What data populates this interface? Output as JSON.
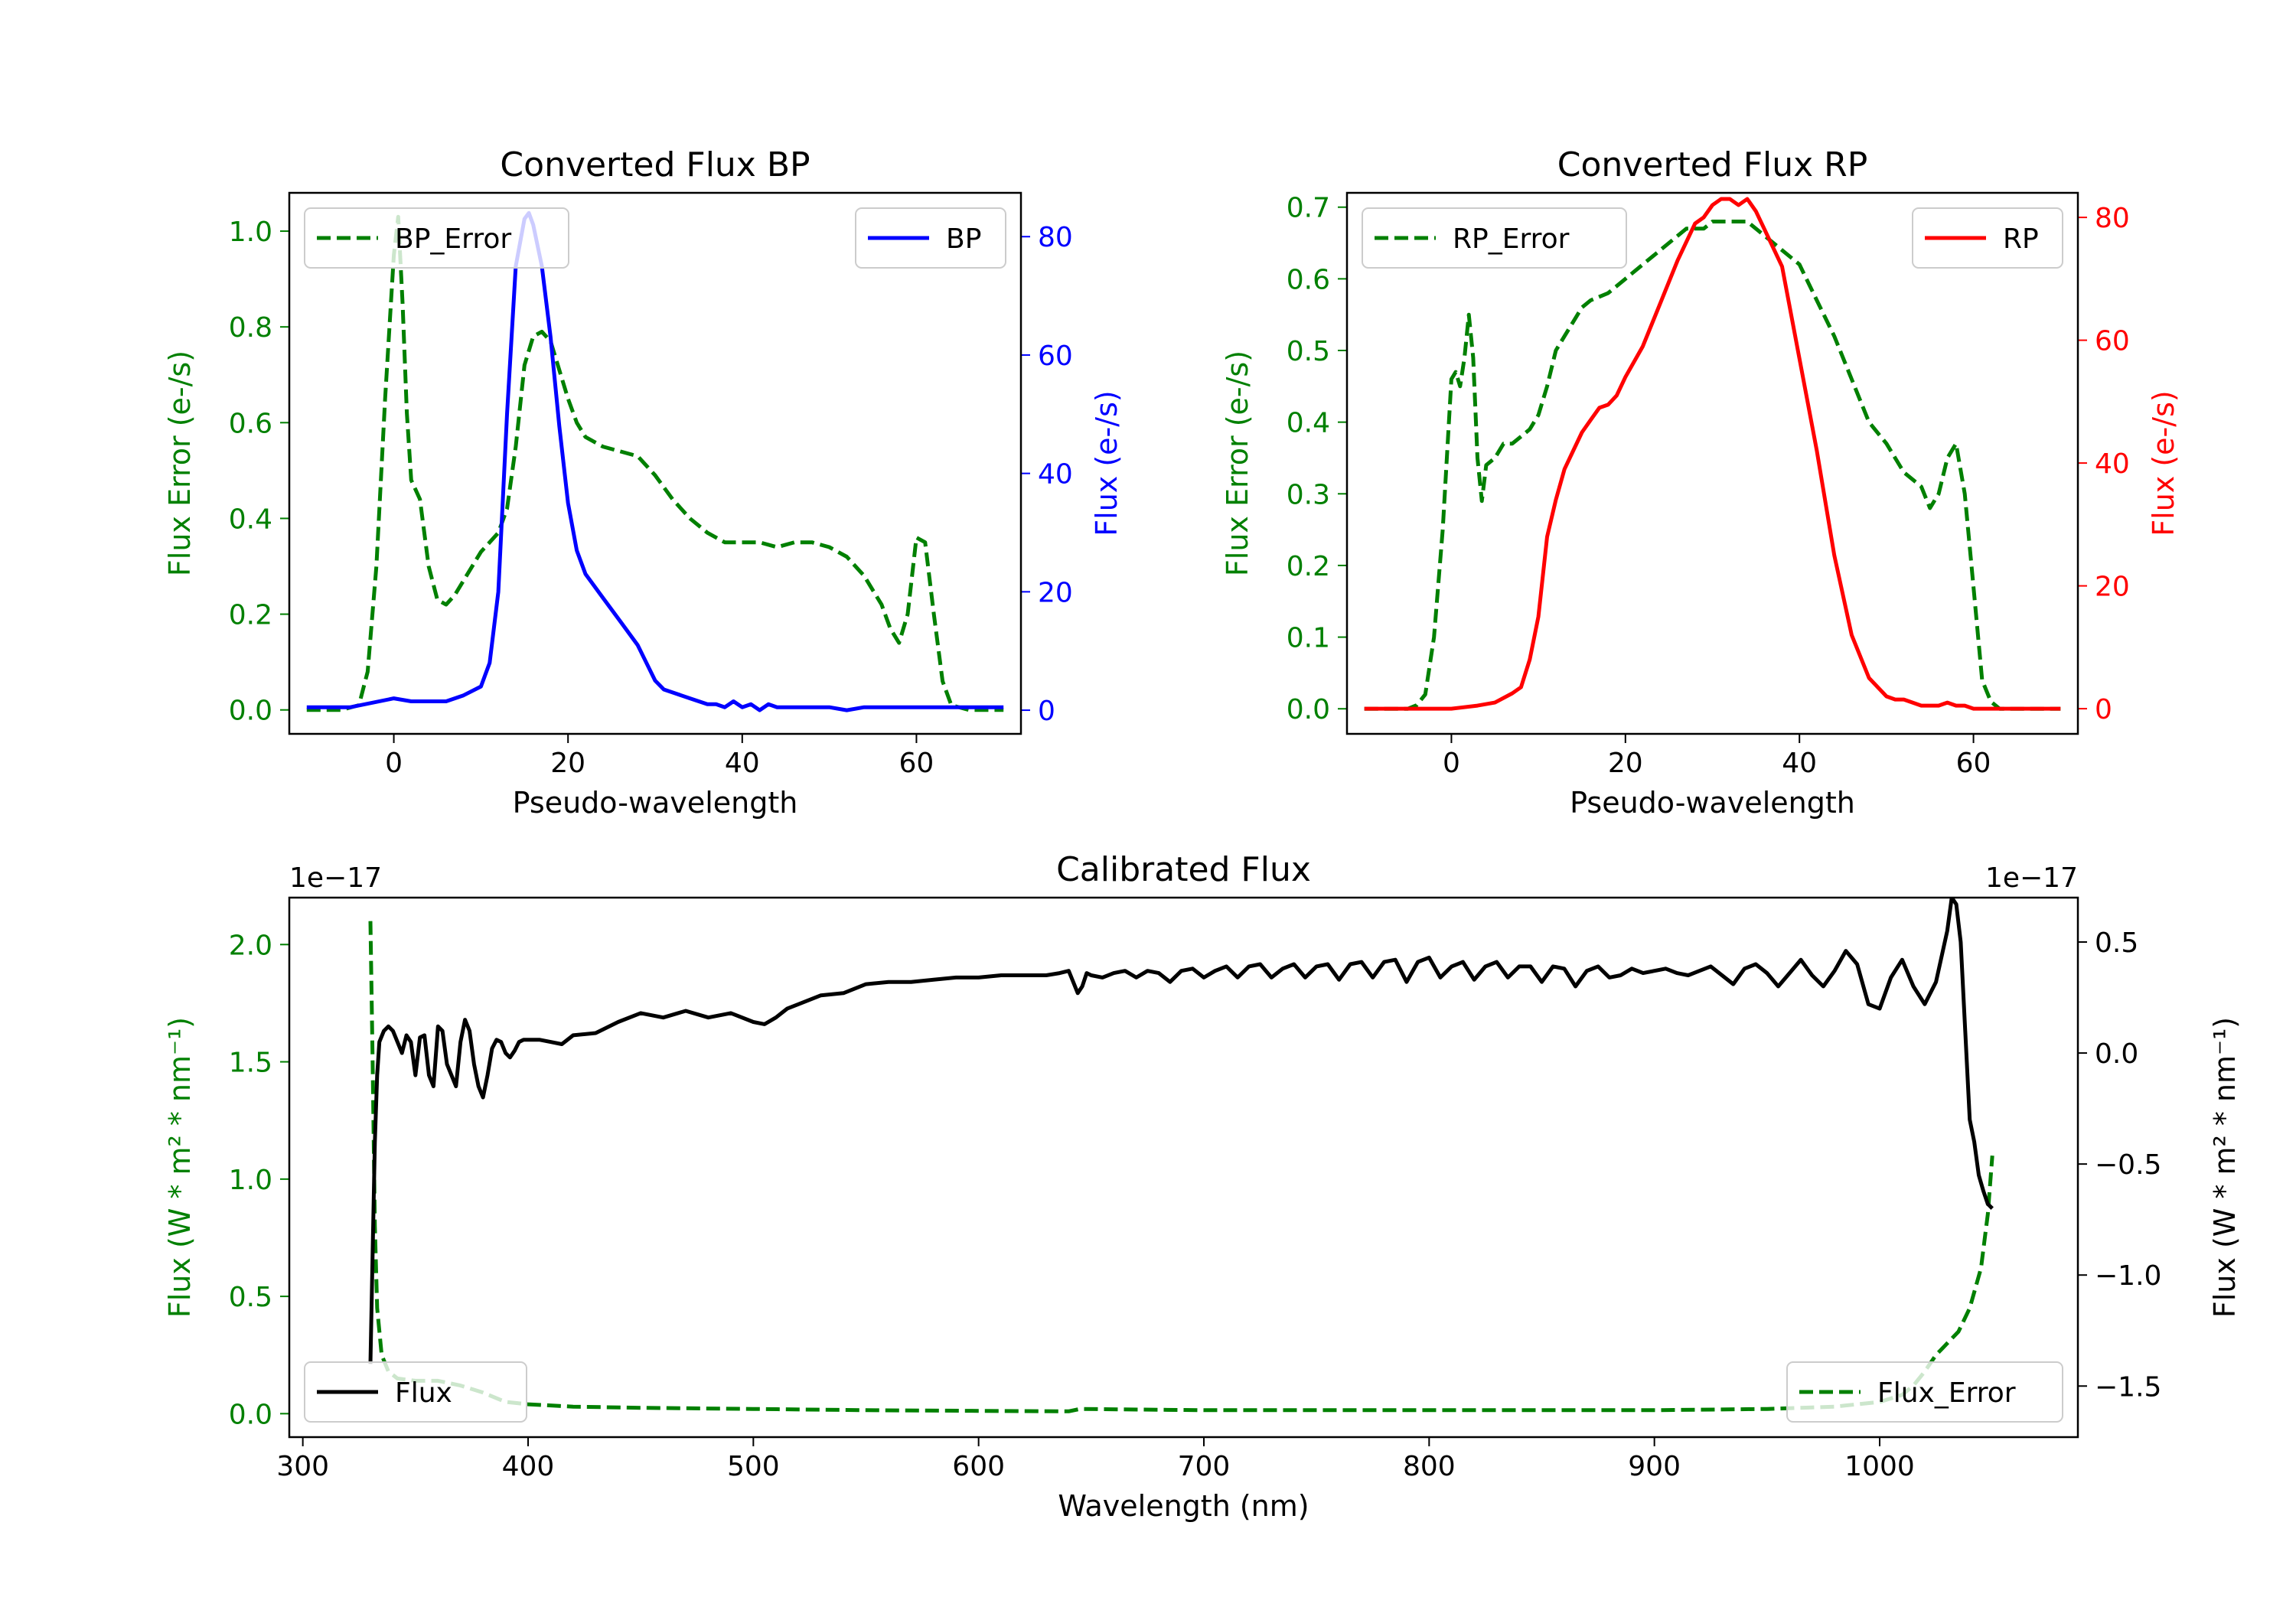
{
  "chart_data": [
    {
      "type": "line",
      "title": "Converted Flux BP",
      "xlabel": "Pseudo-wavelength",
      "ylabel_left": "Flux Error (e-/s)",
      "ylabel_right": "Flux (e-/s)",
      "xlim": [
        -12,
        72
      ],
      "ylim_left": [
        -0.05,
        1.08
      ],
      "ylim_right": [
        -4.0,
        87.4
      ],
      "xticks": [
        "0",
        "20",
        "40",
        "60"
      ],
      "yticks_left": [
        "0.0",
        "0.2",
        "0.4",
        "0.6",
        "0.8",
        "1.0"
      ],
      "yticks_right": [
        "0",
        "20",
        "40",
        "60",
        "80"
      ],
      "colors": {
        "error": "#008000",
        "flux": "#0000ff",
        "left_axis": "#008000",
        "right_axis": "#0000ff"
      },
      "series": [
        {
          "name": "BP_Error",
          "axis": "left",
          "style": "dashed",
          "color": "#008000",
          "x": [
            -10,
            -6,
            -4,
            -3,
            -2,
            -1,
            0,
            0.5,
            1,
            1.5,
            2,
            3,
            4,
            5,
            6,
            7,
            8,
            10,
            12,
            13,
            14,
            15,
            16,
            17,
            18,
            19,
            20,
            21,
            22,
            24,
            26,
            28,
            30,
            32,
            34,
            36,
            38,
            40,
            42,
            44,
            46,
            48,
            50,
            52,
            54,
            56,
            57,
            58,
            59,
            60,
            61,
            62,
            63,
            64,
            66,
            68,
            70
          ],
          "values": [
            0.0,
            0.0,
            0.01,
            0.08,
            0.3,
            0.65,
            0.95,
            1.03,
            0.85,
            0.62,
            0.48,
            0.44,
            0.3,
            0.23,
            0.22,
            0.24,
            0.27,
            0.33,
            0.37,
            0.42,
            0.55,
            0.72,
            0.78,
            0.79,
            0.77,
            0.71,
            0.65,
            0.6,
            0.57,
            0.55,
            0.54,
            0.53,
            0.49,
            0.44,
            0.4,
            0.37,
            0.35,
            0.35,
            0.35,
            0.34,
            0.35,
            0.35,
            0.34,
            0.32,
            0.28,
            0.22,
            0.17,
            0.14,
            0.2,
            0.36,
            0.35,
            0.2,
            0.06,
            0.01,
            0.0,
            0.0,
            0.0
          ]
        },
        {
          "name": "BP",
          "axis": "right",
          "style": "solid",
          "color": "#0000ff",
          "x": [
            -10,
            -5,
            0,
            2,
            4,
            6,
            8,
            10,
            11,
            12,
            13,
            14,
            15,
            15.5,
            16,
            17,
            18,
            19,
            20,
            21,
            22,
            24,
            26,
            28,
            29,
            30,
            31,
            32,
            34,
            36,
            37,
            38,
            39,
            40,
            41,
            42,
            43,
            44,
            46,
            48,
            50,
            52,
            54,
            56,
            58,
            60,
            62,
            64,
            66,
            68,
            70
          ],
          "values": [
            0.5,
            0.5,
            2.0,
            1.5,
            1.5,
            1.5,
            2.5,
            4.0,
            8.0,
            20.0,
            50.0,
            75.0,
            83.0,
            84.0,
            82.0,
            75.0,
            63.0,
            48.0,
            35.0,
            27.0,
            23.0,
            19.0,
            15.0,
            11.0,
            8.0,
            5.0,
            3.5,
            3.0,
            2.0,
            1.0,
            1.0,
            0.5,
            1.5,
            0.5,
            1.0,
            0.0,
            1.0,
            0.5,
            0.5,
            0.5,
            0.5,
            0.0,
            0.5,
            0.5,
            0.5,
            0.5,
            0.5,
            0.5,
            0.5,
            0.5,
            0.5
          ]
        }
      ],
      "legend": [
        {
          "label": "BP_Error",
          "location": "upper left"
        },
        {
          "label": "BP",
          "location": "upper right"
        }
      ]
    },
    {
      "type": "line",
      "title": "Converted Flux RP",
      "xlabel": "Pseudo-wavelength",
      "ylabel_left": "Flux Error (e-/s)",
      "ylabel_right": "Flux (e-/s)",
      "xlim": [
        -12,
        72
      ],
      "ylim_left": [
        -0.035,
        0.72
      ],
      "ylim_right": [
        -4.1,
        84.0
      ],
      "xticks": [
        "0",
        "20",
        "40",
        "60"
      ],
      "yticks_left": [
        "0.0",
        "0.1",
        "0.2",
        "0.3",
        "0.4",
        "0.5",
        "0.6",
        "0.7"
      ],
      "yticks_right": [
        "0",
        "20",
        "40",
        "60",
        "80"
      ],
      "colors": {
        "error": "#008000",
        "flux": "#ff0000",
        "left_axis": "#008000",
        "right_axis": "#ff0000"
      },
      "series": [
        {
          "name": "RP_Error",
          "axis": "left",
          "style": "dashed",
          "color": "#008000",
          "x": [
            -10,
            -5,
            -4,
            -3,
            -2,
            -1,
            0,
            0.5,
            1,
            1.5,
            2,
            2.5,
            3,
            3.5,
            4,
            5,
            6,
            7,
            8,
            9,
            10,
            11,
            12,
            13,
            14,
            15,
            16,
            18,
            20,
            22,
            24,
            26,
            27,
            28,
            29,
            30,
            31,
            32,
            34,
            36,
            38,
            40,
            42,
            44,
            46,
            48,
            50,
            52,
            54,
            55,
            56,
            57,
            58,
            59,
            60,
            61,
            62,
            63,
            64,
            66,
            68,
            70
          ],
          "values": [
            0.0,
            0.0,
            0.005,
            0.02,
            0.1,
            0.25,
            0.46,
            0.47,
            0.45,
            0.49,
            0.55,
            0.49,
            0.35,
            0.29,
            0.34,
            0.35,
            0.37,
            0.37,
            0.38,
            0.39,
            0.41,
            0.45,
            0.5,
            0.52,
            0.54,
            0.56,
            0.57,
            0.58,
            0.6,
            0.62,
            0.64,
            0.66,
            0.67,
            0.67,
            0.67,
            0.68,
            0.68,
            0.68,
            0.68,
            0.66,
            0.64,
            0.62,
            0.57,
            0.52,
            0.46,
            0.4,
            0.37,
            0.33,
            0.31,
            0.28,
            0.3,
            0.35,
            0.37,
            0.3,
            0.17,
            0.04,
            0.01,
            0.0,
            0.0,
            0.0,
            0.0,
            0.0
          ]
        },
        {
          "name": "RP",
          "axis": "right",
          "style": "solid",
          "color": "#ff0000",
          "x": [
            -10,
            -5,
            0,
            3,
            5,
            7,
            8,
            9,
            10,
            11,
            12,
            13,
            14,
            15,
            16,
            17,
            18,
            19,
            20,
            22,
            24,
            26,
            28,
            29,
            30,
            31,
            32,
            33,
            34,
            35,
            36,
            38,
            40,
            42,
            44,
            46,
            48,
            50,
            51,
            52,
            53,
            54,
            55,
            56,
            57,
            58,
            59,
            60,
            62,
            64,
            66,
            68,
            70
          ],
          "values": [
            0.0,
            0.0,
            0.0,
            0.5,
            1.0,
            2.5,
            3.5,
            8.0,
            15.0,
            28.0,
            34.0,
            39.0,
            42.0,
            45.0,
            47.0,
            49.0,
            49.5,
            51.0,
            54.0,
            59.0,
            66.0,
            73.0,
            79.0,
            80.0,
            82.0,
            83.0,
            83.0,
            82.0,
            83.0,
            81.0,
            78.0,
            72.0,
            57.0,
            42.0,
            25.0,
            12.0,
            5.0,
            2.0,
            1.5,
            1.5,
            1.0,
            0.5,
            0.5,
            0.5,
            1.0,
            0.5,
            0.5,
            0.0,
            0.0,
            0.0,
            0.0,
            0.0,
            0.0
          ]
        }
      ],
      "legend": [
        {
          "label": "RP_Error",
          "location": "upper left"
        },
        {
          "label": "RP",
          "location": "upper right"
        }
      ]
    },
    {
      "type": "line",
      "title": "Calibrated Flux",
      "xlabel": "Wavelength (nm)",
      "ylabel_left": "Flux (W * m² * nm⁻¹)",
      "ylabel_right": "Flux (W * m² * nm⁻¹)",
      "offset_left": "1e−17",
      "offset_right": "1e−17",
      "xlim": [
        294,
        1088
      ],
      "ylim_left": [
        -0.1,
        2.2
      ],
      "ylim_right": [
        -1.73,
        0.7
      ],
      "xticks": [
        "300",
        "400",
        "500",
        "600",
        "700",
        "800",
        "900",
        "1000"
      ],
      "yticks_left": [
        "0.0",
        "0.5",
        "1.0",
        "1.5",
        "2.0"
      ],
      "yticks_right": [
        "−1.5",
        "−1.0",
        "−0.5",
        "0.0",
        "0.5"
      ],
      "colors": {
        "error": "#008000",
        "flux": "#000000",
        "left_axis": "#008000",
        "right_axis": "#000000"
      },
      "series": [
        {
          "name": "Flux_Error",
          "axis": "left",
          "style": "dashed",
          "color": "#008000",
          "x": [
            330,
            331,
            332,
            333,
            335,
            338,
            342,
            350,
            360,
            370,
            380,
            390,
            400,
            420,
            450,
            500,
            550,
            600,
            640,
            645,
            700,
            800,
            900,
            950,
            980,
            1000,
            1010,
            1015,
            1020,
            1025,
            1030,
            1035,
            1040,
            1045,
            1048,
            1050
          ],
          "values": [
            2.1,
            1.5,
            0.8,
            0.45,
            0.25,
            0.18,
            0.15,
            0.14,
            0.14,
            0.12,
            0.09,
            0.05,
            0.04,
            0.03,
            0.025,
            0.02,
            0.015,
            0.012,
            0.01,
            0.02,
            0.015,
            0.015,
            0.015,
            0.02,
            0.03,
            0.05,
            0.08,
            0.12,
            0.18,
            0.25,
            0.3,
            0.35,
            0.45,
            0.62,
            0.85,
            1.1
          ]
        },
        {
          "name": "Flux",
          "axis": "right",
          "style": "solid",
          "color": "#000000",
          "x": [
            330,
            331,
            332,
            333,
            334,
            336,
            338,
            340,
            342,
            344,
            346,
            348,
            350,
            352,
            354,
            356,
            358,
            360,
            362,
            364,
            366,
            368,
            370,
            372,
            374,
            376,
            378,
            380,
            382,
            384,
            386,
            388,
            390,
            392,
            394,
            396,
            398,
            400,
            405,
            410,
            415,
            420,
            430,
            440,
            450,
            460,
            470,
            480,
            490,
            500,
            505,
            510,
            515,
            520,
            530,
            540,
            550,
            560,
            570,
            580,
            590,
            600,
            610,
            620,
            630,
            636,
            640,
            642,
            644,
            646,
            648,
            650,
            655,
            660,
            665,
            670,
            675,
            680,
            685,
            690,
            695,
            700,
            705,
            710,
            715,
            720,
            725,
            730,
            735,
            740,
            745,
            750,
            755,
            760,
            765,
            770,
            775,
            780,
            785,
            790,
            795,
            800,
            805,
            810,
            815,
            820,
            825,
            830,
            835,
            840,
            845,
            850,
            855,
            860,
            865,
            870,
            875,
            880,
            885,
            890,
            895,
            900,
            905,
            910,
            915,
            920,
            925,
            930,
            935,
            940,
            945,
            950,
            955,
            960,
            965,
            970,
            975,
            980,
            985,
            990,
            995,
            1000,
            1005,
            1010,
            1015,
            1020,
            1025,
            1030,
            1032,
            1034,
            1036,
            1038,
            1040,
            1042,
            1044,
            1046,
            1048,
            1050
          ],
          "values": [
            -1.4,
            -0.9,
            -0.4,
            -0.1,
            0.05,
            0.1,
            0.12,
            0.1,
            0.05,
            0.0,
            0.08,
            0.05,
            -0.1,
            0.07,
            0.08,
            -0.1,
            -0.15,
            0.12,
            0.1,
            -0.05,
            -0.1,
            -0.15,
            0.05,
            0.15,
            0.1,
            -0.05,
            -0.15,
            -0.2,
            -0.1,
            0.02,
            0.06,
            0.05,
            0.0,
            -0.02,
            0.01,
            0.05,
            0.06,
            0.06,
            0.06,
            0.05,
            0.04,
            0.08,
            0.09,
            0.14,
            0.18,
            0.16,
            0.19,
            0.16,
            0.18,
            0.14,
            0.13,
            0.16,
            0.2,
            0.22,
            0.26,
            0.27,
            0.31,
            0.32,
            0.32,
            0.33,
            0.34,
            0.34,
            0.35,
            0.35,
            0.35,
            0.36,
            0.37,
            0.32,
            0.27,
            0.3,
            0.36,
            0.35,
            0.34,
            0.36,
            0.37,
            0.34,
            0.37,
            0.36,
            0.32,
            0.37,
            0.38,
            0.34,
            0.37,
            0.39,
            0.34,
            0.39,
            0.4,
            0.34,
            0.38,
            0.4,
            0.34,
            0.39,
            0.4,
            0.33,
            0.4,
            0.41,
            0.34,
            0.41,
            0.42,
            0.32,
            0.41,
            0.43,
            0.34,
            0.39,
            0.41,
            0.33,
            0.39,
            0.41,
            0.34,
            0.39,
            0.39,
            0.32,
            0.39,
            0.38,
            0.3,
            0.37,
            0.39,
            0.34,
            0.35,
            0.38,
            0.36,
            0.37,
            0.38,
            0.36,
            0.35,
            0.37,
            0.39,
            0.35,
            0.31,
            0.38,
            0.4,
            0.36,
            0.3,
            0.36,
            0.42,
            0.35,
            0.3,
            0.37,
            0.46,
            0.4,
            0.22,
            0.2,
            0.34,
            0.42,
            0.3,
            0.22,
            0.32,
            0.55,
            0.7,
            0.67,
            0.5,
            0.1,
            -0.3,
            -0.4,
            -0.55,
            -0.62,
            -0.68,
            -0.7
          ]
        }
      ],
      "legend": [
        {
          "label": "Flux",
          "location": "lower left"
        },
        {
          "label": "Flux_Error",
          "location": "lower right"
        }
      ]
    }
  ]
}
